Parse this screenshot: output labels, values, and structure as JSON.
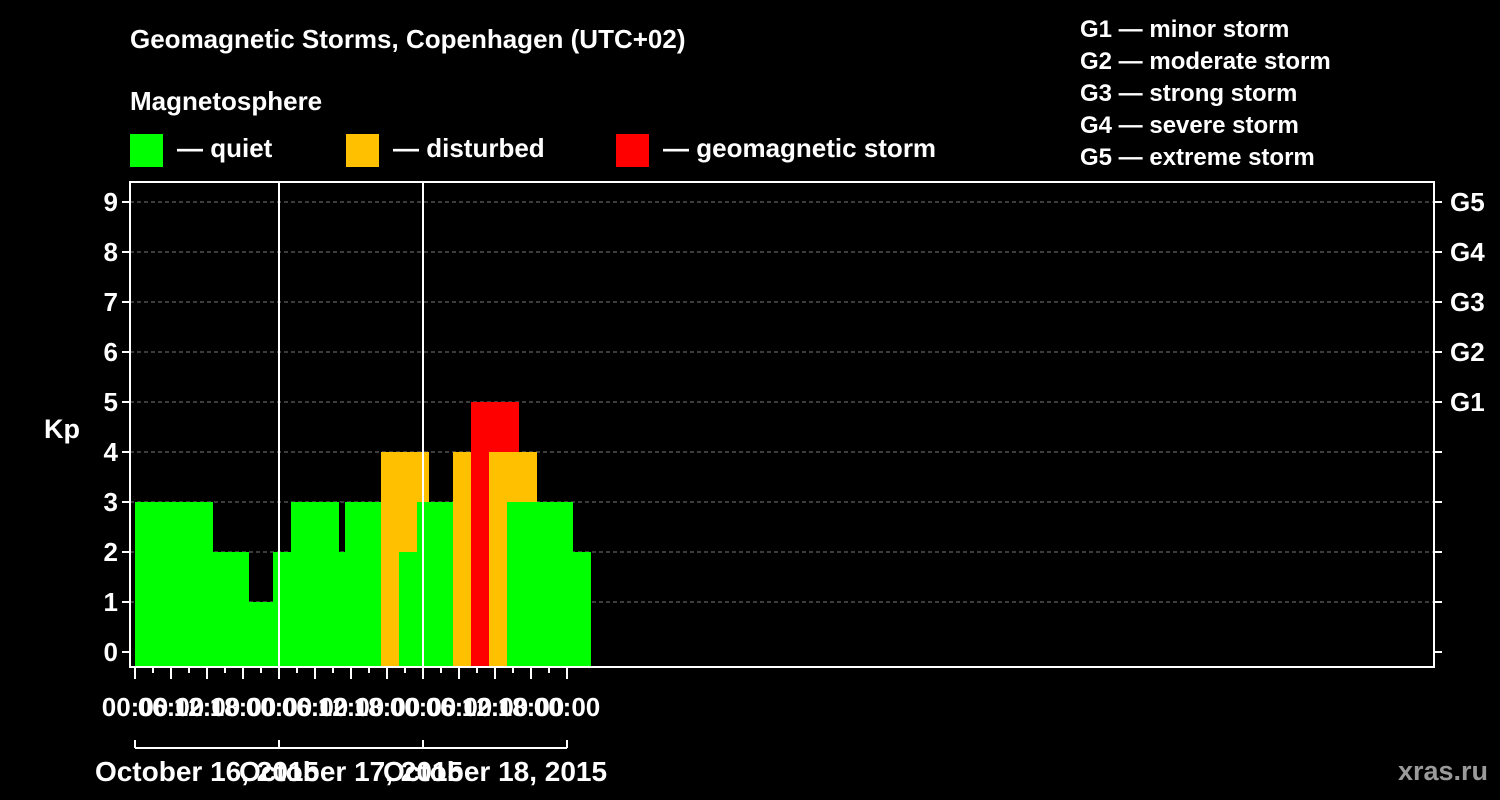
{
  "chart_data": {
    "type": "bar",
    "title": "Geomagnetic Storms, Copenhagen (UTC+02)",
    "legend_title": "Magnetosphere",
    "legend": [
      {
        "label": "— quiet",
        "color": "#00ff00"
      },
      {
        "label": "— disturbed",
        "color": "#ffc000"
      },
      {
        "label": "— geomagnetic storm",
        "color": "#ff0000"
      }
    ],
    "storm_scale": [
      "G1 — minor storm",
      "G2 — moderate storm",
      "G3 — strong storm",
      "G4 — severe storm",
      "G5 — extreme storm"
    ],
    "ylabel": "Kp",
    "ylim": [
      0,
      9
    ],
    "y_ticks": [
      "0",
      "1",
      "2",
      "3",
      "4",
      "5",
      "6",
      "7",
      "8",
      "9"
    ],
    "right_ticks": [
      {
        "kp": 5,
        "label": "G1"
      },
      {
        "kp": 6,
        "label": "G2"
      },
      {
        "kp": 7,
        "label": "G3"
      },
      {
        "kp": 8,
        "label": "G4"
      },
      {
        "kp": 9,
        "label": "G5"
      }
    ],
    "x_tick_labels": [
      "00:00",
      "06:00",
      "12:00",
      "18:00",
      "00:00",
      "06:00",
      "12:00",
      "18:00",
      "00:00",
      "06:00",
      "12:00",
      "18:00",
      "00:00"
    ],
    "days": [
      "October 16, 2015",
      "October 17, 2015",
      "October 18, 2015"
    ],
    "interval_hours": 3,
    "grid": "horizontal dashed",
    "colors": {
      "quiet": "#00ff00",
      "disturbed": "#ffc000",
      "storm": "#ff0000"
    },
    "values": [
      3,
      2,
      3,
      3,
      1,
      2,
      1,
      1,
      1,
      2,
      3,
      2,
      2,
      3,
      2,
      4,
      2,
      3,
      3,
      4,
      5,
      4,
      3,
      3,
      2
    ]
  },
  "watermark": "xras.ru"
}
